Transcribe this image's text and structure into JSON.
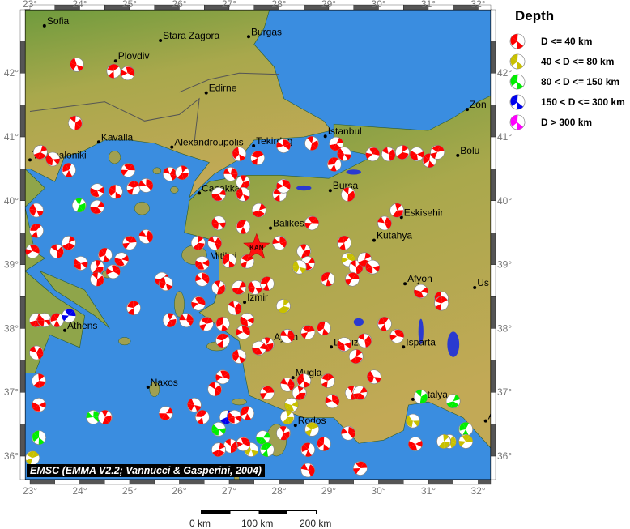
{
  "map": {
    "lon_range": [
      23,
      32.3
    ],
    "lat_range": [
      35.6,
      42.9
    ],
    "lon_ticks": [
      "23°",
      "24°",
      "25°",
      "26°",
      "27°",
      "28°",
      "29°",
      "30°",
      "31°",
      "32°"
    ],
    "lat_ticks": [
      "36°",
      "37°",
      "38°",
      "39°",
      "40°",
      "41°",
      "42°"
    ],
    "colors": {
      "sea": "#3a8de0",
      "land_north": "#6a9a3c",
      "land_south": "#c2a956",
      "d1": "#ff0000",
      "d2": "#c8c000",
      "d3": "#00ee00",
      "d4": "#0000ee",
      "d5": "#ff00ff"
    },
    "cities": [
      {
        "name": "Sofia",
        "lon": 23.29,
        "lat": 42.74
      },
      {
        "name": "Stara Zagora",
        "lon": 25.62,
        "lat": 42.51
      },
      {
        "name": "Burgas",
        "lon": 27.39,
        "lat": 42.57
      },
      {
        "name": "Plovdiv",
        "lon": 24.72,
        "lat": 42.19
      },
      {
        "name": "Edirne",
        "lon": 26.54,
        "lat": 41.69
      },
      {
        "name": "Zon",
        "lon": 31.78,
        "lat": 41.43
      },
      {
        "name": "Kavalla",
        "lon": 24.38,
        "lat": 40.92
      },
      {
        "name": "Alexandroupolis",
        "lon": 25.85,
        "lat": 40.84
      },
      {
        "name": "Tekirdag",
        "lon": 27.49,
        "lat": 40.86
      },
      {
        "name": "Istanbul",
        "lon": 28.93,
        "lat": 41.01
      },
      {
        "name": "Bolu",
        "lon": 31.59,
        "lat": 40.71
      },
      {
        "name": "Thessaloniki",
        "lon": 23.0,
        "lat": 40.64
      },
      {
        "name": "Canakkale",
        "lon": 26.4,
        "lat": 40.12
      },
      {
        "name": "Bursa",
        "lon": 29.03,
        "lat": 40.16
      },
      {
        "name": "Eskisehir",
        "lon": 30.46,
        "lat": 39.74
      },
      {
        "name": "Balikesir",
        "lon": 27.83,
        "lat": 39.57
      },
      {
        "name": "Kutahya",
        "lon": 29.91,
        "lat": 39.38
      },
      {
        "name": "Mitilini",
        "lon": 26.56,
        "lat": 39.06
      },
      {
        "name": "Izmir",
        "lon": 27.31,
        "lat": 38.41
      },
      {
        "name": "Afyon",
        "lon": 30.53,
        "lat": 38.7
      },
      {
        "name": "Us",
        "lon": 31.93,
        "lat": 38.64
      },
      {
        "name": "Athens",
        "lon": 23.7,
        "lat": 37.97
      },
      {
        "name": "Aydin",
        "lon": 27.85,
        "lat": 37.79
      },
      {
        "name": "Denizli",
        "lon": 29.05,
        "lat": 37.71
      },
      {
        "name": "Isparta",
        "lon": 30.5,
        "lat": 37.71
      },
      {
        "name": "Mugla",
        "lon": 28.28,
        "lat": 37.23
      },
      {
        "name": "Naxos",
        "lon": 25.37,
        "lat": 37.08
      },
      {
        "name": "Antalya",
        "lon": 30.69,
        "lat": 36.89
      },
      {
        "name": "Rodos",
        "lon": 28.33,
        "lat": 36.48
      },
      {
        "name": "A",
        "lon": 32.15,
        "lat": 36.55
      }
    ],
    "mainshock": {
      "label": "KAN",
      "lon": 27.55,
      "lat": 39.27
    },
    "events": [
      [
        23.94,
        42.13,
        1
      ],
      [
        24.68,
        42.03,
        1
      ],
      [
        24.96,
        42.0,
        1
      ],
      [
        23.91,
        41.22,
        1
      ],
      [
        23.21,
        40.76,
        1
      ],
      [
        23.46,
        40.65,
        1
      ],
      [
        23.78,
        40.48,
        1
      ],
      [
        24.97,
        40.48,
        1
      ],
      [
        25.81,
        40.42,
        1
      ],
      [
        26.06,
        40.44,
        1
      ],
      [
        24.35,
        40.16,
        1
      ],
      [
        24.72,
        40.14,
        1
      ],
      [
        25.08,
        40.2,
        1
      ],
      [
        25.33,
        40.24,
        1
      ],
      [
        23.99,
        39.93,
        3
      ],
      [
        24.35,
        39.9,
        1
      ],
      [
        23.13,
        39.85,
        1
      ],
      [
        23.13,
        39.53,
        1
      ],
      [
        23.05,
        39.21,
        1
      ],
      [
        23.54,
        39.21,
        1
      ],
      [
        23.78,
        39.34,
        1
      ],
      [
        24.02,
        39.02,
        1
      ],
      [
        24.51,
        39.15,
        1
      ],
      [
        25.0,
        39.34,
        1
      ],
      [
        25.33,
        39.44,
        1
      ],
      [
        24.35,
        38.96,
        1
      ],
      [
        24.84,
        39.08,
        1
      ],
      [
        27.2,
        40.73,
        1
      ],
      [
        27.57,
        40.67,
        1
      ],
      [
        28.09,
        40.86,
        1
      ],
      [
        28.66,
        40.9,
        1
      ],
      [
        29.15,
        40.89,
        1
      ],
      [
        29.31,
        40.73,
        1
      ],
      [
        29.11,
        40.57,
        1
      ],
      [
        29.88,
        40.73,
        1
      ],
      [
        30.2,
        40.73,
        1
      ],
      [
        30.48,
        40.76,
        1
      ],
      [
        30.77,
        40.73,
        1
      ],
      [
        31.02,
        40.63,
        1
      ],
      [
        31.18,
        40.76,
        1
      ],
      [
        27.03,
        40.42,
        1
      ],
      [
        27.28,
        40.29,
        1
      ],
      [
        26.79,
        40.1,
        1
      ],
      [
        27.28,
        40.1,
        1
      ],
      [
        28.01,
        40.1,
        1
      ],
      [
        28.09,
        40.23,
        1
      ],
      [
        29.39,
        40.1,
        1
      ],
      [
        27.6,
        39.85,
        1
      ],
      [
        26.79,
        39.65,
        1
      ],
      [
        27.28,
        39.59,
        1
      ],
      [
        28.66,
        39.65,
        1
      ],
      [
        26.71,
        39.34,
        1
      ],
      [
        26.38,
        39.34,
        1
      ],
      [
        26.46,
        39.02,
        1
      ],
      [
        27.0,
        39.06,
        1
      ],
      [
        27.36,
        39.05,
        1
      ],
      [
        28.01,
        39.34,
        1
      ],
      [
        28.5,
        39.21,
        1
      ],
      [
        28.58,
        39.02,
        1
      ],
      [
        28.41,
        38.96,
        2
      ],
      [
        29.31,
        39.34,
        1
      ],
      [
        29.39,
        39.08,
        2
      ],
      [
        29.55,
        38.96,
        1
      ],
      [
        29.72,
        39.08,
        1
      ],
      [
        29.88,
        38.96,
        1
      ],
      [
        28.98,
        38.77,
        1
      ],
      [
        29.47,
        38.77,
        1
      ],
      [
        30.12,
        39.65,
        1
      ],
      [
        30.37,
        39.85,
        1
      ],
      [
        30.85,
        38.58,
        1
      ],
      [
        31.26,
        38.47,
        1
      ],
      [
        31.26,
        38.39,
        1
      ],
      [
        26.46,
        38.77,
        1
      ],
      [
        26.79,
        38.64,
        1
      ],
      [
        27.2,
        38.64,
        1
      ],
      [
        27.52,
        38.64,
        1
      ],
      [
        27.76,
        38.7,
        1
      ],
      [
        26.38,
        38.39,
        1
      ],
      [
        27.11,
        38.32,
        1
      ],
      [
        28.09,
        38.35,
        2
      ],
      [
        27.36,
        38.13,
        1
      ],
      [
        26.87,
        38.07,
        1
      ],
      [
        26.54,
        38.07,
        1
      ],
      [
        26.14,
        38.13,
        1
      ],
      [
        25.81,
        38.13,
        1
      ],
      [
        25.65,
        38.77,
        1
      ],
      [
        25.73,
        38.7,
        1
      ],
      [
        25.08,
        38.32,
        1
      ],
      [
        24.67,
        38.89,
        1
      ],
      [
        24.35,
        38.77,
        1
      ],
      [
        23.13,
        38.13,
        1
      ],
      [
        23.29,
        38.13,
        1
      ],
      [
        23.54,
        38.13,
        1
      ],
      [
        23.78,
        38.2,
        4
      ],
      [
        23.13,
        37.62,
        1
      ],
      [
        23.18,
        37.18,
        1
      ],
      [
        23.18,
        36.8,
        1
      ],
      [
        23.18,
        36.29,
        3
      ],
      [
        23.05,
        35.97,
        2
      ],
      [
        24.27,
        36.61,
        3
      ],
      [
        24.51,
        36.61,
        1
      ],
      [
        25.73,
        36.67,
        1
      ],
      [
        26.3,
        36.8,
        1
      ],
      [
        26.46,
        36.61,
        1
      ],
      [
        26.87,
        37.24,
        1
      ],
      [
        26.71,
        37.05,
        1
      ],
      [
        26.95,
        36.61,
        4
      ],
      [
        27.11,
        36.61,
        1
      ],
      [
        27.36,
        36.67,
        1
      ],
      [
        27.76,
        36.99,
        1
      ],
      [
        28.17,
        37.12,
        1
      ],
      [
        28.41,
        36.99,
        1
      ],
      [
        28.25,
        36.8,
        2
      ],
      [
        28.5,
        37.18,
        1
      ],
      [
        28.98,
        37.18,
        1
      ],
      [
        29.07,
        36.86,
        1
      ],
      [
        29.47,
        36.99,
        1
      ],
      [
        29.63,
        36.99,
        1
      ],
      [
        29.91,
        37.24,
        1
      ],
      [
        30.12,
        38.07,
        1
      ],
      [
        30.37,
        37.88,
        1
      ],
      [
        29.72,
        37.81,
        1
      ],
      [
        29.55,
        37.56,
        1
      ],
      [
        29.31,
        37.75,
        1
      ],
      [
        28.9,
        38.0,
        1
      ],
      [
        28.58,
        37.94,
        1
      ],
      [
        28.17,
        37.88,
        1
      ],
      [
        27.76,
        37.75,
        1
      ],
      [
        27.6,
        37.69,
        1
      ],
      [
        27.2,
        37.56,
        1
      ],
      [
        26.87,
        37.81,
        1
      ],
      [
        27.28,
        37.94,
        1
      ],
      [
        30.85,
        36.93,
        3
      ],
      [
        31.5,
        36.86,
        3
      ],
      [
        30.69,
        36.55,
        2
      ],
      [
        31.75,
        36.42,
        3
      ],
      [
        31.75,
        36.23,
        2
      ],
      [
        31.42,
        36.23,
        2
      ],
      [
        31.31,
        36.23,
        2
      ],
      [
        30.74,
        36.19,
        1
      ],
      [
        28.9,
        36.19,
        1
      ],
      [
        28.66,
        36.42,
        2
      ],
      [
        29.39,
        36.36,
        1
      ],
      [
        28.09,
        36.36,
        1
      ],
      [
        27.68,
        36.29,
        3
      ],
      [
        27.44,
        36.1,
        2
      ],
      [
        27.76,
        36.1,
        3
      ],
      [
        27.28,
        36.19,
        1
      ],
      [
        27.03,
        36.16,
        1
      ],
      [
        26.79,
        36.1,
        1
      ],
      [
        26.79,
        36.42,
        3
      ],
      [
        28.58,
        36.1,
        1
      ],
      [
        29.63,
        35.81,
        1
      ],
      [
        28.58,
        35.78,
        1
      ],
      [
        28.17,
        36.61,
        2
      ]
    ]
  },
  "legend": {
    "title": "Depth",
    "items": [
      {
        "label": "D <= 40 km",
        "color": "#ff0000"
      },
      {
        "label": "40 < D <= 80 km",
        "color": "#c8c000"
      },
      {
        "label": "80 < D <= 150 km",
        "color": "#00ee00"
      },
      {
        "label": "150 < D <= 300 km",
        "color": "#0000ee"
      },
      {
        "label": "D > 300 km",
        "color": "#ff00ff"
      }
    ]
  },
  "credit": "EMSC (EMMA V2.2; Vannucci & Gasperini, 2004)",
  "scale": {
    "labels": [
      "0 km",
      "100 km",
      "200 km"
    ]
  }
}
